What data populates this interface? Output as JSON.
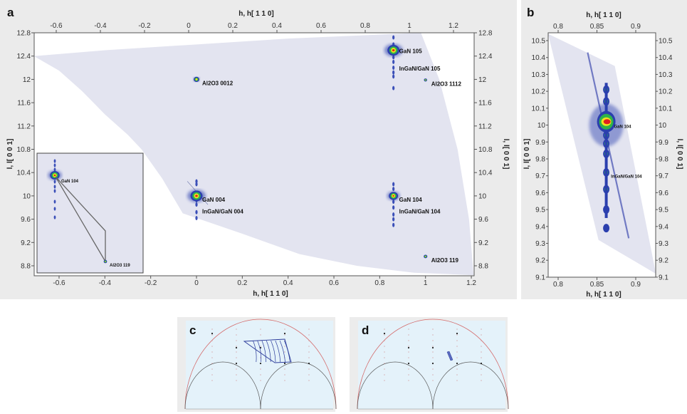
{
  "panels": {
    "a": "a",
    "b": "b",
    "c": "c",
    "d": "d"
  },
  "colors": {
    "panel_bg": "#ebebeb",
    "region": "#e3e4f0",
    "peak_outer": "#2b3fae",
    "peak_mid": "#2fb34a",
    "peak_inner": "#f2e21e",
    "peak_core": "#e02020",
    "rod": "#3b4fb8",
    "ewald_outer": "#d46a6a",
    "ewald_inner": "#555555",
    "map_bg": "#e4f2fa"
  },
  "chart_data": [
    {
      "id": "a",
      "type": "heatmap",
      "xlabel": "h, h[ 1 1 0]",
      "ylabel": "l, l[ 0 0 1]",
      "xlim": [
        -0.71,
        1.21
      ],
      "ylim": [
        8.63,
        12.8
      ],
      "x_ticks": [
        "-0.6",
        "-0.4",
        "-0.2",
        "0",
        "0.2",
        "0.4",
        "0.6",
        "0.8",
        "1",
        "1.2"
      ],
      "y_ticks": [
        "8.8",
        "9.2",
        "9.6",
        "10",
        "10.4",
        "10.8",
        "11.2",
        "11.6",
        "12",
        "12.4",
        "12.8"
      ],
      "grid": false,
      "measured_region": [
        [
          -0.71,
          12.4
        ],
        [
          -0.4,
          12.5
        ],
        [
          0,
          12.6
        ],
        [
          0.4,
          12.7
        ],
        [
          0.75,
          12.76
        ],
        [
          0.98,
          12.8
        ],
        [
          1.06,
          12
        ],
        [
          1.14,
          10.8
        ],
        [
          1.19,
          9.6
        ],
        [
          1.21,
          8.64
        ],
        [
          0.95,
          8.68
        ],
        [
          0.7,
          8.8
        ],
        [
          0.45,
          9.0
        ],
        [
          0.2,
          9.35
        ],
        [
          -0.06,
          9.7
        ],
        [
          -0.15,
          10.3
        ],
        [
          -0.24,
          10.8
        ],
        [
          -0.3,
          11.05
        ],
        [
          -0.4,
          11.4
        ],
        [
          -0.5,
          11.8
        ],
        [
          -0.6,
          12.15
        ]
      ],
      "peaks": [
        {
          "label": "GaN 105",
          "h": 0.86,
          "l": 12.5,
          "strength": 1.0,
          "label_dl": 0.0
        },
        {
          "label": "InGaN/GaN 105",
          "h": 0.86,
          "l": 12.2,
          "strength": 0,
          "label_dl": 0.0
        },
        {
          "label": "Al2O3 0012",
          "h": 0.0,
          "l": 12.0,
          "strength": 0.35,
          "label_dl": -0.05
        },
        {
          "label": "Al2O3 1112",
          "h": 1.0,
          "l": 11.99,
          "strength": 0.1,
          "label_dl": -0.05
        },
        {
          "label": "GaN 004",
          "h": 0.0,
          "l": 10.0,
          "strength": 1.0,
          "label_dl": -0.05
        },
        {
          "label": "InGaN/GaN 004",
          "h": 0.0,
          "l": 9.75,
          "strength": 0,
          "label_dl": 0.0
        },
        {
          "label": "GaN 104",
          "h": 0.86,
          "l": 10.0,
          "strength": 0.7,
          "label_dl": -0.05
        },
        {
          "label": "InGaN/GaN 104",
          "h": 0.86,
          "l": 9.75,
          "strength": 0,
          "label_dl": 0.0
        },
        {
          "label": "Al2O3 119",
          "h": 1.0,
          "l": 8.96,
          "strength": 0.15,
          "label_dl": -0.05
        }
      ],
      "rods": [
        {
          "h": 0.86,
          "l": [
            11.85,
            12.05,
            12.12,
            12.2,
            12.3,
            12.38,
            12.6,
            12.72
          ]
        },
        {
          "h": 0.0,
          "l": [
            9.62,
            9.72,
            9.85,
            9.92,
            10.2,
            10.25
          ]
        },
        {
          "h": 0.86,
          "l": [
            9.5,
            9.6,
            9.68,
            9.8,
            9.9,
            10.12,
            10.2
          ]
        }
      ],
      "inset": {
        "labels": [
          "GaN 104",
          "Al2O3 119"
        ]
      }
    },
    {
      "id": "b",
      "type": "heatmap",
      "xlabel": "h, h[ 1 1 0]",
      "ylabel": "l, l[ 0 0 1]",
      "xlim": [
        0.787,
        0.926
      ],
      "ylim": [
        9.1,
        10.546
      ],
      "x_ticks": [
        "0.8",
        "0.85",
        "0.9"
      ],
      "y_ticks": [
        "9.1",
        "9.2",
        "9.3",
        "9.4",
        "9.5",
        "9.6",
        "9.7",
        "9.8",
        "9.9",
        "10",
        "10.1",
        "10.2",
        "10.3",
        "10.4",
        "10.5"
      ],
      "grid": false,
      "measured_region": [
        [
          0.787,
          10.54
        ],
        [
          0.873,
          10.35
        ],
        [
          0.926,
          9.12
        ],
        [
          0.852,
          9.32
        ]
      ],
      "analyzer_streak": [
        [
          0.838,
          10.43
        ],
        [
          0.891,
          9.33
        ]
      ],
      "peaks": [
        {
          "label": "GaN 104",
          "h": 0.862,
          "l": 10.02,
          "strength": 1.0
        },
        {
          "label": "InGaN/GaN 104",
          "h": 0.862,
          "l": 9.72,
          "strength": 0
        }
      ],
      "rod_spots": [
        {
          "h": 0.862,
          "l": 10.21
        },
        {
          "h": 0.862,
          "l": 10.14
        },
        {
          "h": 0.862,
          "l": 9.94
        },
        {
          "h": 0.862,
          "l": 9.89
        },
        {
          "h": 0.862,
          "l": 9.83
        },
        {
          "h": 0.862,
          "l": 9.72
        },
        {
          "h": 0.862,
          "l": 9.62
        },
        {
          "h": 0.862,
          "l": 9.5
        },
        {
          "h": 0.862,
          "l": 9.39
        }
      ]
    }
  ]
}
